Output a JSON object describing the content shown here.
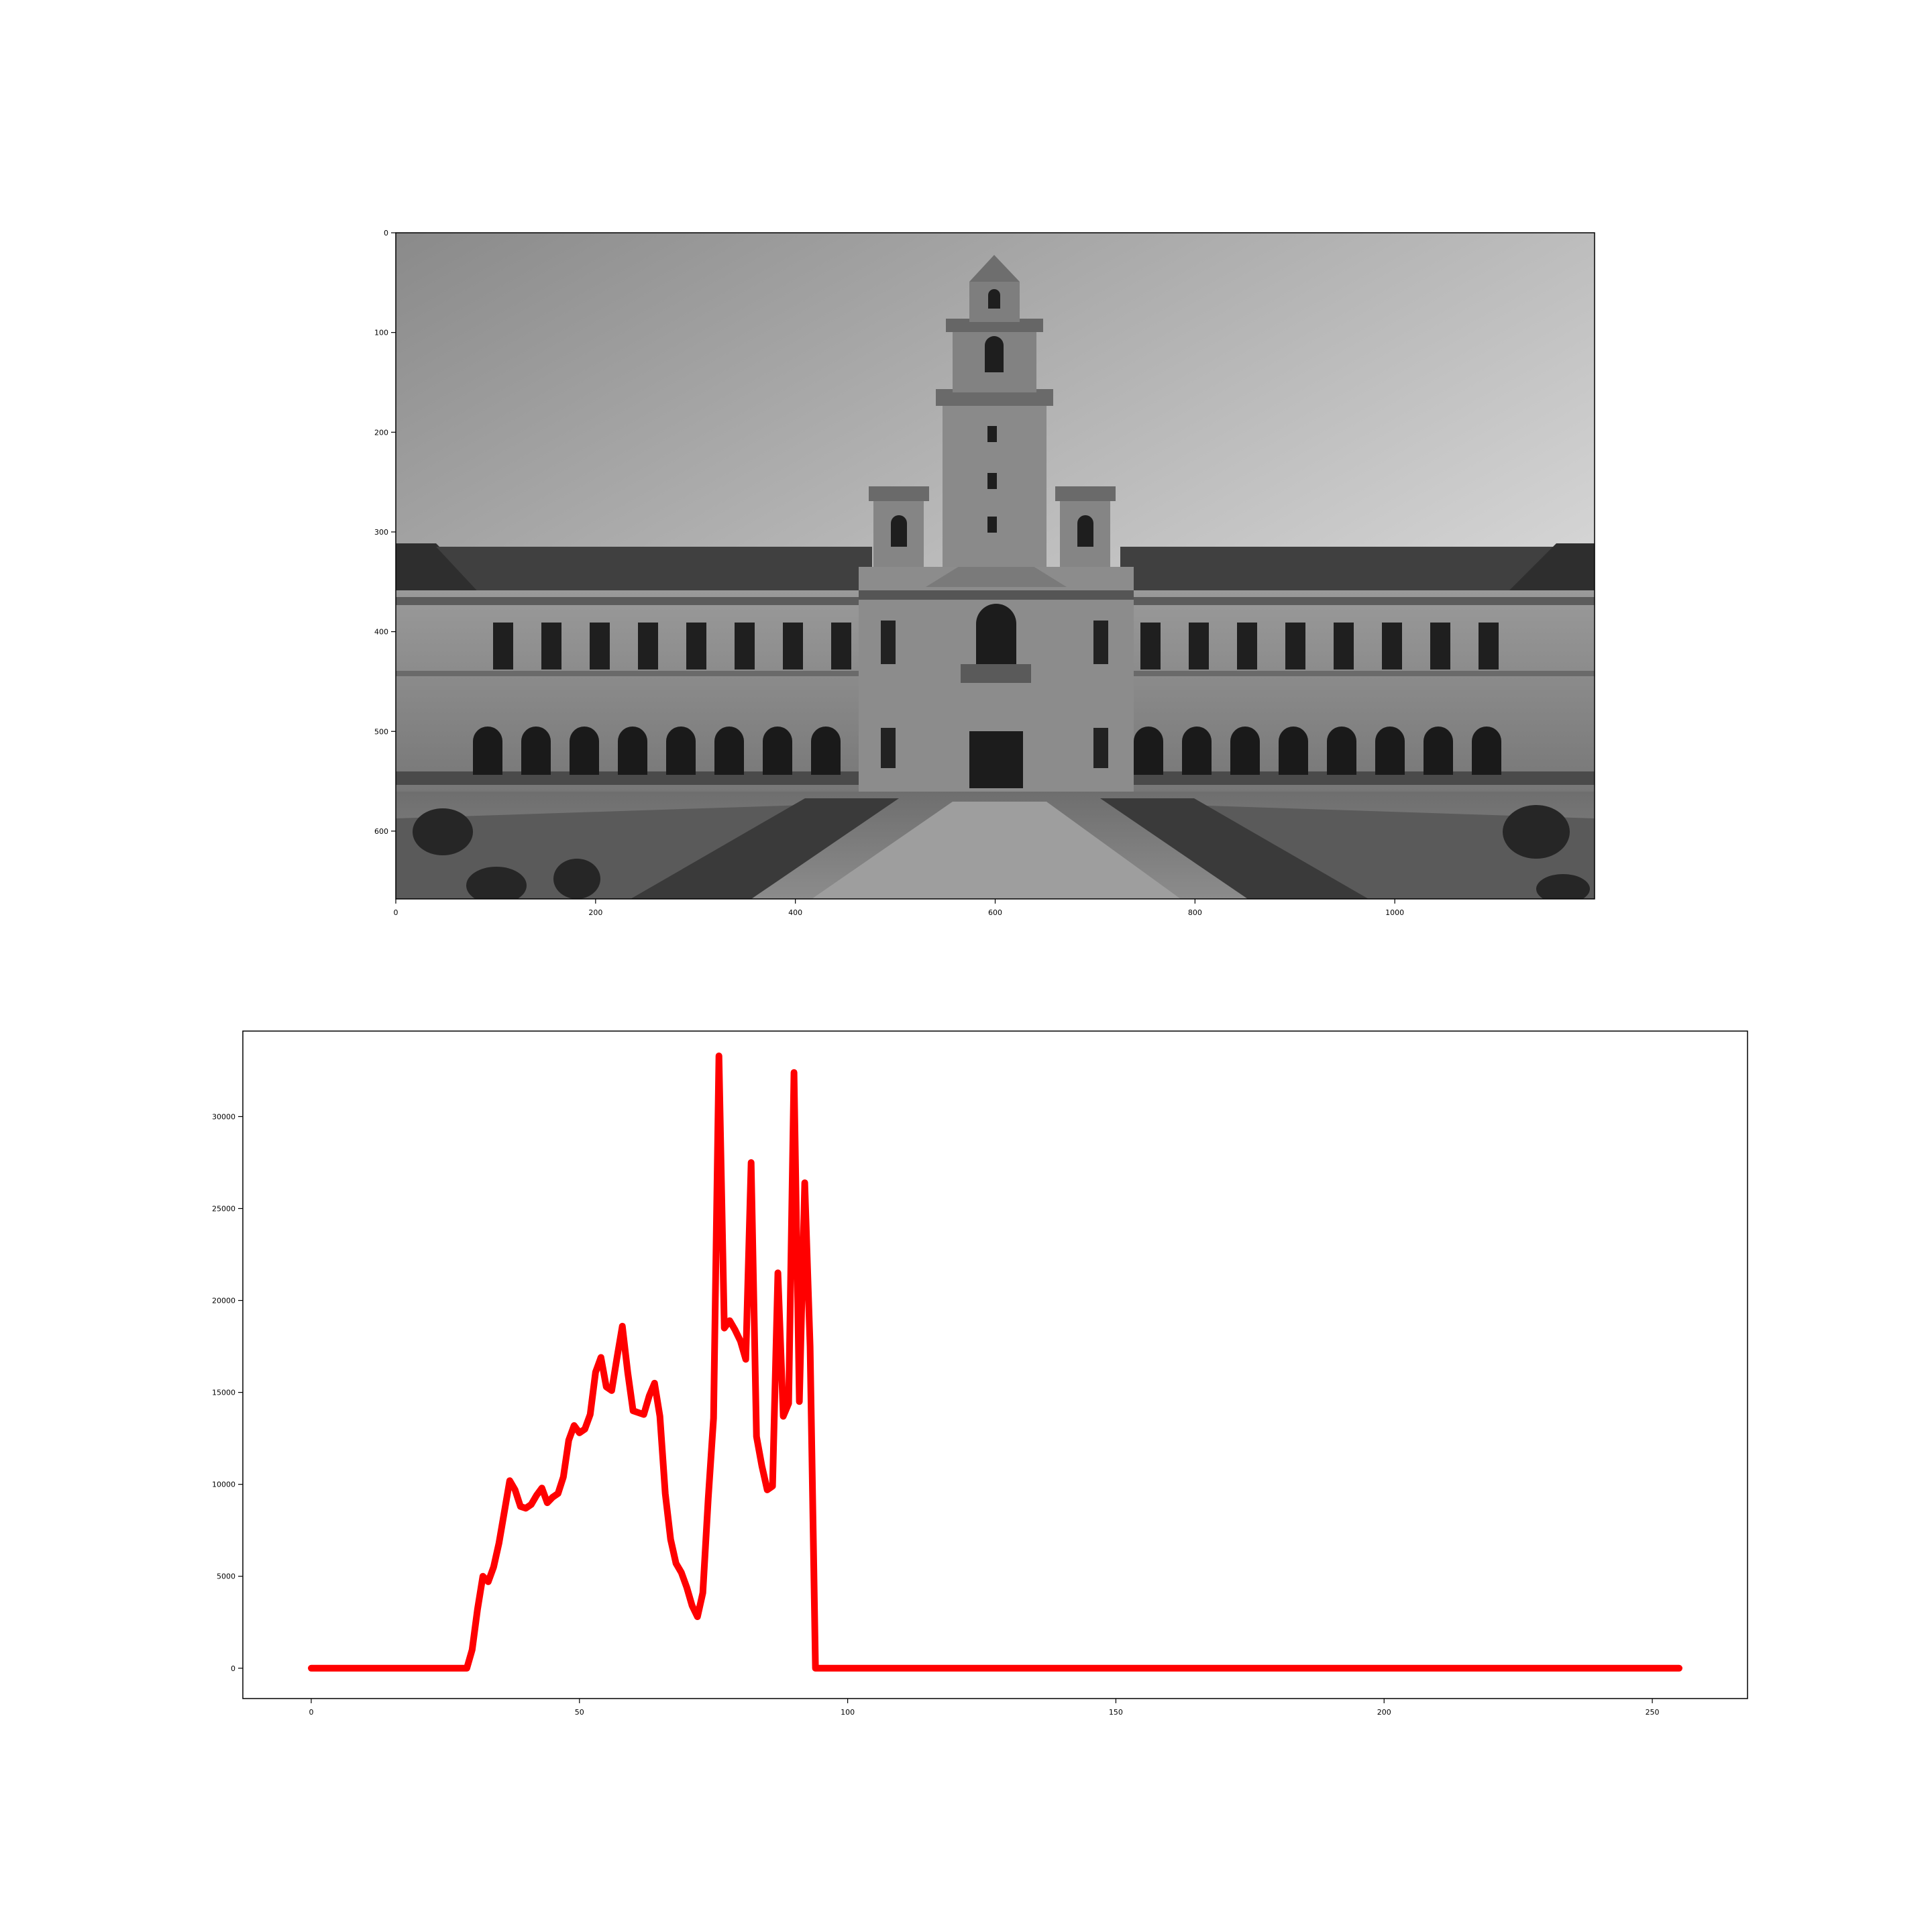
{
  "colors": {
    "line": "#ff0000",
    "axes": "#000000",
    "background": "#ffffff"
  },
  "image_panel": {
    "subject": "grayscale photograph of a stone building with a central clock tower, arched arcade, lawns and walkway",
    "x_ticks": [
      "0",
      "200",
      "400",
      "600",
      "800",
      "1000"
    ],
    "y_ticks": [
      "0",
      "100",
      "200",
      "300",
      "400",
      "500",
      "600"
    ],
    "xlim": [
      0,
      1200
    ],
    "ylim": [
      0,
      668
    ]
  },
  "chart_data": {
    "type": "line",
    "title": "",
    "xlabel": "",
    "ylabel": "",
    "xlim": [
      -12.75,
      267.75
    ],
    "ylim": [
      -1650,
      34650
    ],
    "x_ticks": [
      0,
      50,
      100,
      150,
      200,
      250
    ],
    "y_ticks": [
      0,
      5000,
      10000,
      15000,
      20000,
      25000,
      30000
    ],
    "grid": false,
    "legend": "none",
    "series": [
      {
        "color": "#ff0000",
        "points": [
          [
            0,
            0
          ],
          [
            29,
            0
          ],
          [
            30,
            1000
          ],
          [
            31,
            3200
          ],
          [
            32,
            5000
          ],
          [
            33,
            4700
          ],
          [
            34,
            5500
          ],
          [
            35,
            6800
          ],
          [
            36,
            8500
          ],
          [
            37,
            10200
          ],
          [
            38,
            9700
          ],
          [
            39,
            8800
          ],
          [
            40,
            8700
          ],
          [
            41,
            8900
          ],
          [
            42,
            9400
          ],
          [
            43,
            9800
          ],
          [
            44,
            9000
          ],
          [
            45,
            9300
          ],
          [
            46,
            9500
          ],
          [
            47,
            10400
          ],
          [
            48,
            12400
          ],
          [
            49,
            13200
          ],
          [
            50,
            12800
          ],
          [
            51,
            13000
          ],
          [
            52,
            13800
          ],
          [
            53,
            16100
          ],
          [
            54,
            16900
          ],
          [
            55,
            15300
          ],
          [
            56,
            15100
          ],
          [
            57,
            16900
          ],
          [
            58,
            18600
          ],
          [
            59,
            16100
          ],
          [
            60,
            14000
          ],
          [
            61,
            13900
          ],
          [
            62,
            13800
          ],
          [
            63,
            14800
          ],
          [
            64,
            15500
          ],
          [
            65,
            13700
          ],
          [
            66,
            9500
          ],
          [
            67,
            7000
          ],
          [
            68,
            5700
          ],
          [
            69,
            5200
          ],
          [
            70,
            4400
          ],
          [
            71,
            3400
          ],
          [
            72,
            2800
          ],
          [
            73,
            4100
          ],
          [
            74,
            9200
          ],
          [
            75,
            13600
          ],
          [
            76,
            33300
          ],
          [
            77,
            18500
          ],
          [
            78,
            18900
          ],
          [
            79,
            18400
          ],
          [
            80,
            17800
          ],
          [
            81,
            16800
          ],
          [
            82,
            27500
          ],
          [
            83,
            12600
          ],
          [
            84,
            11000
          ],
          [
            85,
            9700
          ],
          [
            86,
            9900
          ],
          [
            87,
            21500
          ],
          [
            88,
            13700
          ],
          [
            89,
            14400
          ],
          [
            90,
            32400
          ],
          [
            91,
            14500
          ],
          [
            92,
            26400
          ],
          [
            93,
            17500
          ],
          [
            94,
            0
          ],
          [
            255,
            0
          ]
        ]
      }
    ]
  }
}
